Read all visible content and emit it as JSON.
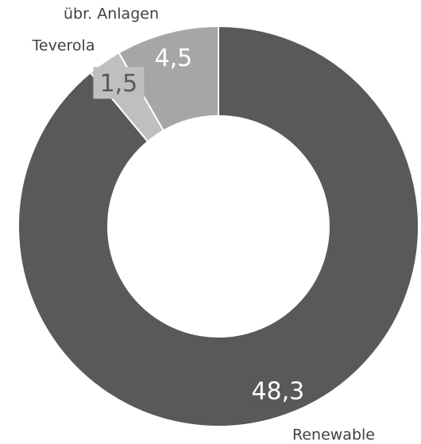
{
  "chart_data": {
    "type": "donut",
    "categories": [
      "Renewable",
      "Teverola",
      "übr. Anlagen"
    ],
    "values": [
      48.3,
      1.5,
      4.5
    ],
    "value_labels": [
      "48,3",
      "1,5",
      "4,5"
    ],
    "colors": [
      "#595959",
      "#bfbfbf",
      "#a6a6a6"
    ]
  }
}
